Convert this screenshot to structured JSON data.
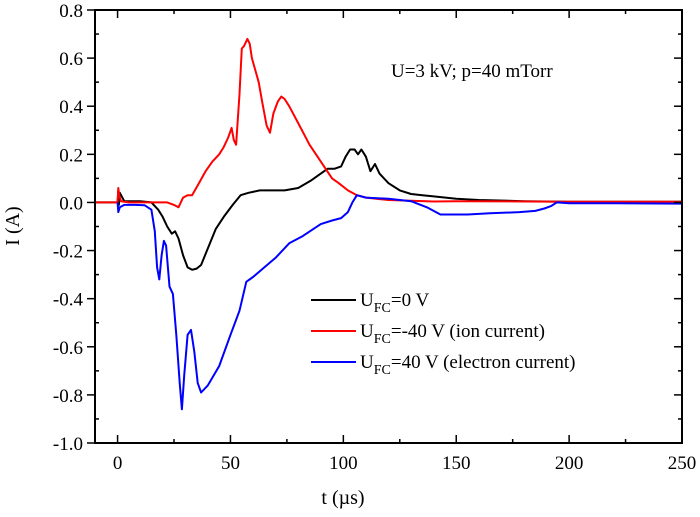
{
  "chart_data": {
    "type": "line",
    "title": "",
    "xlabel": "t (µs)",
    "ylabel": "I (A)",
    "xlim": [
      -10,
      250
    ],
    "ylim": [
      -1.0,
      0.8
    ],
    "xticks": [
      0,
      50,
      100,
      150,
      200,
      250
    ],
    "xtick_labels": [
      "0",
      "50",
      "100",
      "150",
      "200",
      "250"
    ],
    "yticks": [
      -1.0,
      -0.8,
      -0.6,
      -0.4,
      -0.2,
      0.0,
      0.2,
      0.4,
      0.6,
      0.8
    ],
    "ytick_labels": [
      "-1.0",
      "-0.8",
      "-0.6",
      "-0.4",
      "-0.2",
      "0.0",
      "0.2",
      "0.4",
      "0.6",
      "0.8"
    ],
    "grid": false,
    "legend_position": "bottom-right",
    "annotation": "U=3 kV; p=40 mTorr",
    "series": [
      {
        "name": "U_FC=0 V",
        "legend_main": "U",
        "legend_sub": "FC",
        "legend_rest": "=0 V",
        "color": "#000000",
        "x": [
          -10,
          -5,
          0,
          0.3,
          0.6,
          1,
          3,
          10,
          15,
          18,
          20,
          22,
          24,
          25.5,
          27,
          29,
          31,
          33,
          35,
          37,
          40,
          43.5,
          47,
          51,
          54.5,
          58,
          63,
          68,
          74,
          80,
          85.5,
          90,
          93,
          96,
          99,
          101,
          103,
          105,
          106.5,
          108,
          110,
          112,
          114,
          116,
          120,
          125,
          130,
          135,
          140,
          150,
          160,
          180,
          200,
          250
        ],
        "y": [
          0.0,
          0.0,
          0.0,
          0.05,
          -0.01,
          0.04,
          0.005,
          0.005,
          0.0,
          -0.03,
          -0.06,
          -0.1,
          -0.13,
          -0.12,
          -0.15,
          -0.22,
          -0.27,
          -0.28,
          -0.275,
          -0.26,
          -0.19,
          -0.11,
          -0.06,
          -0.01,
          0.03,
          0.04,
          0.05,
          0.05,
          0.05,
          0.06,
          0.09,
          0.12,
          0.14,
          0.14,
          0.15,
          0.19,
          0.22,
          0.22,
          0.2,
          0.22,
          0.19,
          0.13,
          0.16,
          0.12,
          0.08,
          0.05,
          0.035,
          0.03,
          0.025,
          0.015,
          0.01,
          0.005,
          0.003,
          0.003
        ]
      },
      {
        "name": "U_FC=-40 V (ion current)",
        "legend_main": "U",
        "legend_sub": "FC",
        "legend_rest": "=-40 V (ion current)",
        "color": "#ff0000",
        "x": [
          -10,
          0,
          0.3,
          0.7,
          1.5,
          5,
          15,
          22,
          25,
          27,
          29,
          31,
          33,
          36,
          39,
          42,
          45,
          47,
          49,
          50.5,
          51.5,
          52.5,
          54,
          55,
          56,
          57.5,
          58.5,
          59.5,
          61,
          62.5,
          64,
          66,
          67.5,
          69,
          71,
          72.5,
          74,
          76,
          80,
          85,
          90,
          95,
          98,
          102,
          106,
          110,
          120,
          130,
          140,
          150,
          200,
          250
        ],
        "y": [
          0.0,
          0.0,
          0.06,
          0.03,
          0.005,
          0.0,
          0.0,
          0.0,
          -0.01,
          -0.02,
          0.02,
          0.03,
          0.03,
          0.08,
          0.13,
          0.17,
          0.2,
          0.23,
          0.27,
          0.31,
          0.26,
          0.24,
          0.45,
          0.64,
          0.65,
          0.68,
          0.66,
          0.6,
          0.55,
          0.5,
          0.42,
          0.32,
          0.29,
          0.37,
          0.42,
          0.44,
          0.43,
          0.4,
          0.33,
          0.24,
          0.17,
          0.1,
          0.08,
          0.05,
          0.03,
          0.02,
          0.01,
          0.007,
          0.004,
          0.005,
          0.003,
          0.003
        ]
      },
      {
        "name": "U_FC=40 V (electron current)",
        "legend_main": "U",
        "legend_sub": "FC",
        "legend_rest": "=40 V (electron current)",
        "color": "#0000ff",
        "x": [
          0,
          0.3,
          1,
          3,
          8,
          12,
          15,
          16.5,
          17.5,
          18.5,
          19.5,
          20.5,
          21.5,
          23,
          24.5,
          26,
          27.5,
          28.5,
          29.5,
          31,
          32.5,
          34,
          35.5,
          37,
          40,
          45,
          50,
          54,
          57,
          60,
          65,
          70,
          76,
          82,
          90,
          95,
          99,
          102,
          104,
          106,
          110,
          120,
          130,
          137,
          143,
          155,
          165,
          178,
          185,
          189,
          192,
          194.5,
          200,
          220,
          250
        ],
        "y": [
          0.0,
          -0.04,
          -0.02,
          -0.01,
          -0.01,
          -0.012,
          -0.03,
          -0.12,
          -0.27,
          -0.32,
          -0.22,
          -0.16,
          -0.18,
          -0.35,
          -0.38,
          -0.55,
          -0.75,
          -0.86,
          -0.72,
          -0.55,
          -0.53,
          -0.62,
          -0.75,
          -0.79,
          -0.76,
          -0.68,
          -0.55,
          -0.45,
          -0.33,
          -0.31,
          -0.27,
          -0.23,
          -0.17,
          -0.14,
          -0.09,
          -0.075,
          -0.065,
          -0.04,
          0.0,
          0.03,
          0.02,
          0.015,
          0.005,
          -0.02,
          -0.05,
          -0.05,
          -0.045,
          -0.04,
          -0.035,
          -0.025,
          -0.015,
          0.0,
          -0.003,
          -0.003,
          -0.005
        ]
      }
    ]
  }
}
